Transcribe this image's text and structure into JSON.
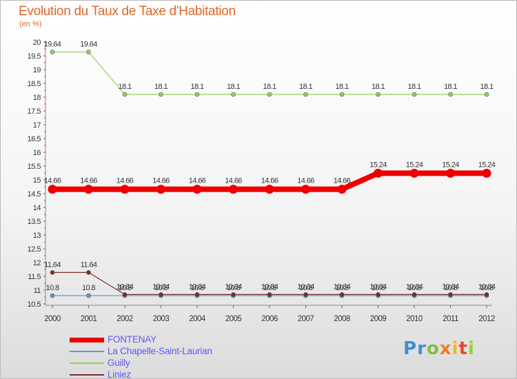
{
  "header": {
    "title": "Evolution du Taux de Taxe d'Habitation",
    "subtitle": "(en %)"
  },
  "colors": {
    "title": "#e0662a",
    "legend_text": "#5b5bf5"
  },
  "chart_data": {
    "type": "line",
    "title": "Evolution du Taux de Taxe d'Habitation",
    "subtitle": "(en %)",
    "xlabel": "",
    "ylabel": "(en %)",
    "x": [
      "2000",
      "2001",
      "2002",
      "2003",
      "2004",
      "2005",
      "2006",
      "2007",
      "2008",
      "2009",
      "2010",
      "2011",
      "2012"
    ],
    "ylim": [
      10.5,
      20
    ],
    "yticks": [
      "10.5",
      "11",
      "11.5",
      "12",
      "12.5",
      "13",
      "13.5",
      "14",
      "14.5",
      "15",
      "15.5",
      "16",
      "16.5",
      "17",
      "17.5",
      "18",
      "18.5",
      "19",
      "19.5",
      "20"
    ],
    "grid": false,
    "legend_position": "bottom-left",
    "series": [
      {
        "name": "FONTENAY",
        "color": "#ee0000",
        "values": [
          14.66,
          14.66,
          14.66,
          14.66,
          14.66,
          14.66,
          14.66,
          14.66,
          14.66,
          15.24,
          15.24,
          15.24,
          15.24
        ],
        "labels": [
          "14.66",
          "14.66",
          "14.66",
          "14.66",
          "14.66",
          "14.66",
          "14.66",
          "14.66",
          "14.66",
          "15.24",
          "15.24",
          "15.24",
          "15.24"
        ]
      },
      {
        "name": "La Chapelle-Saint-Laurian",
        "color": "#5b9bd0",
        "values": [
          10.8,
          10.8,
          10.8,
          10.8,
          10.8,
          10.8,
          10.8,
          10.8,
          10.8,
          10.8,
          10.8,
          10.8,
          10.8
        ],
        "labels": [
          "10.8",
          "10.8",
          "10.8",
          "10.8",
          "10.8",
          "10.8",
          "10.8",
          "10.8",
          "10.8",
          "10.8",
          "10.8",
          "10.8",
          "10.8"
        ]
      },
      {
        "name": "Guilly",
        "color": "#8fd35a",
        "values": [
          19.64,
          19.64,
          18.1,
          18.1,
          18.1,
          18.1,
          18.1,
          18.1,
          18.1,
          18.1,
          18.1,
          18.1,
          18.1
        ],
        "labels": [
          "19.64",
          "19.64",
          "18.1",
          "18.1",
          "18.1",
          "18.1",
          "18.1",
          "18.1",
          "18.1",
          "18.1",
          "18.1",
          "18.1",
          "18.1"
        ]
      },
      {
        "name": "Liniez",
        "color": "#7a2b2b",
        "values": [
          11.64,
          11.64,
          10.84,
          10.84,
          10.84,
          10.84,
          10.84,
          10.84,
          10.84,
          10.84,
          10.84,
          10.84,
          10.84
        ],
        "labels": [
          "11.64",
          "11.64",
          "10.84",
          "10.84",
          "10.84",
          "10.84",
          "10.84",
          "10.84",
          "10.84",
          "10.84",
          "10.84",
          "10.84",
          "10.84"
        ]
      }
    ]
  },
  "logo": {
    "letters": [
      {
        "ch": "P",
        "color": "#3f8fd6"
      },
      {
        "ch": "r",
        "color": "#3f8fd6"
      },
      {
        "ch": "o",
        "color": "#7cc142"
      },
      {
        "ch": "x",
        "color": "#f07e1e"
      },
      {
        "ch": "i",
        "color": "#f0b81e"
      },
      {
        "ch": "t",
        "color": "#e8492a"
      },
      {
        "ch": "i",
        "color": "#9acd32"
      }
    ]
  }
}
